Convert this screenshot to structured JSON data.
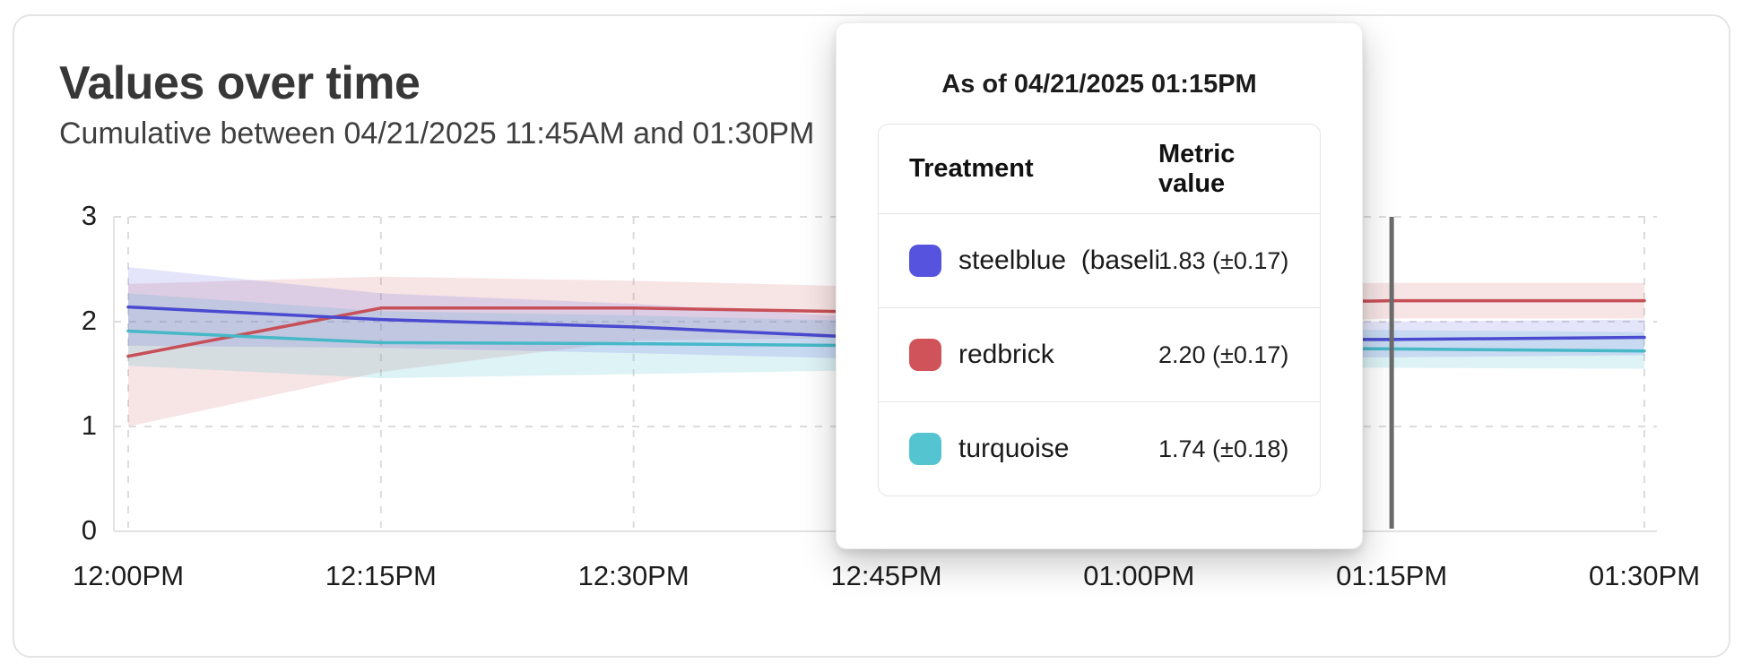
{
  "header": {
    "title": "Values over time",
    "subtitle": "Cumulative between 04/21/2025 11:45AM and 01:30PM"
  },
  "tooltip": {
    "title": "As of 04/21/2025 01:15PM",
    "columns": {
      "treatment": "Treatment",
      "metric": "Metric value"
    },
    "rows": [
      {
        "label": "steelblue  (baseli",
        "value": "1.83 (±0.17)",
        "color": "#5653de"
      },
      {
        "label": "redbrick",
        "value": "2.20 (±0.17)",
        "color": "#d05359"
      },
      {
        "label": "turquoise",
        "value": "1.74 (±0.18)",
        "color": "#54c4d0"
      }
    ]
  },
  "chart_data": {
    "type": "line",
    "title": "Values over time",
    "xlabel": "",
    "ylabel": "",
    "x_tick_labels": [
      "12:00PM",
      "12:15PM",
      "12:30PM",
      "12:45PM",
      "01:00PM",
      "01:15PM",
      "01:30PM"
    ],
    "y_tick_labels": [
      "0",
      "1",
      "2",
      "3"
    ],
    "yticks": [
      0,
      1,
      2,
      3
    ],
    "ylim": [
      0,
      3
    ],
    "grid": "dashed",
    "legend_position": "none",
    "cursor": {
      "at": "01:15PM",
      "color": "#6b6b6b"
    },
    "series": [
      {
        "name": "redbrick",
        "line_color": "#c75058",
        "band_color": "rgba(205,90,95,0.16)",
        "values": [
          1.67,
          2.13,
          2.13,
          2.09,
          2.16,
          2.2,
          2.2
        ],
        "band_hi": [
          2.36,
          2.43,
          2.39,
          2.33,
          2.36,
          2.37,
          2.37
        ],
        "band_lo": [
          1.0,
          1.52,
          1.82,
          1.85,
          1.95,
          2.03,
          2.03
        ]
      },
      {
        "name": "turquoise",
        "line_color": "#46b8c8",
        "band_color": "rgba(86,196,208,0.20)",
        "values": [
          1.91,
          1.8,
          1.79,
          1.77,
          1.75,
          1.74,
          1.72
        ],
        "band_hi": [
          2.27,
          2.1,
          2.06,
          2.0,
          1.95,
          1.92,
          1.9
        ],
        "band_lo": [
          1.58,
          1.46,
          1.5,
          1.54,
          1.56,
          1.56,
          1.55
        ]
      },
      {
        "name": "steelblue (baseline)",
        "line_color": "#4a4ad0",
        "band_color": "rgba(88,85,222,0.16)",
        "values": [
          2.14,
          2.02,
          1.95,
          1.84,
          1.83,
          1.83,
          1.85
        ],
        "band_hi": [
          2.52,
          2.27,
          2.17,
          2.03,
          2.01,
          2.0,
          2.02
        ],
        "band_lo": [
          1.77,
          1.75,
          1.7,
          1.64,
          1.65,
          1.66,
          1.68
        ]
      }
    ]
  }
}
